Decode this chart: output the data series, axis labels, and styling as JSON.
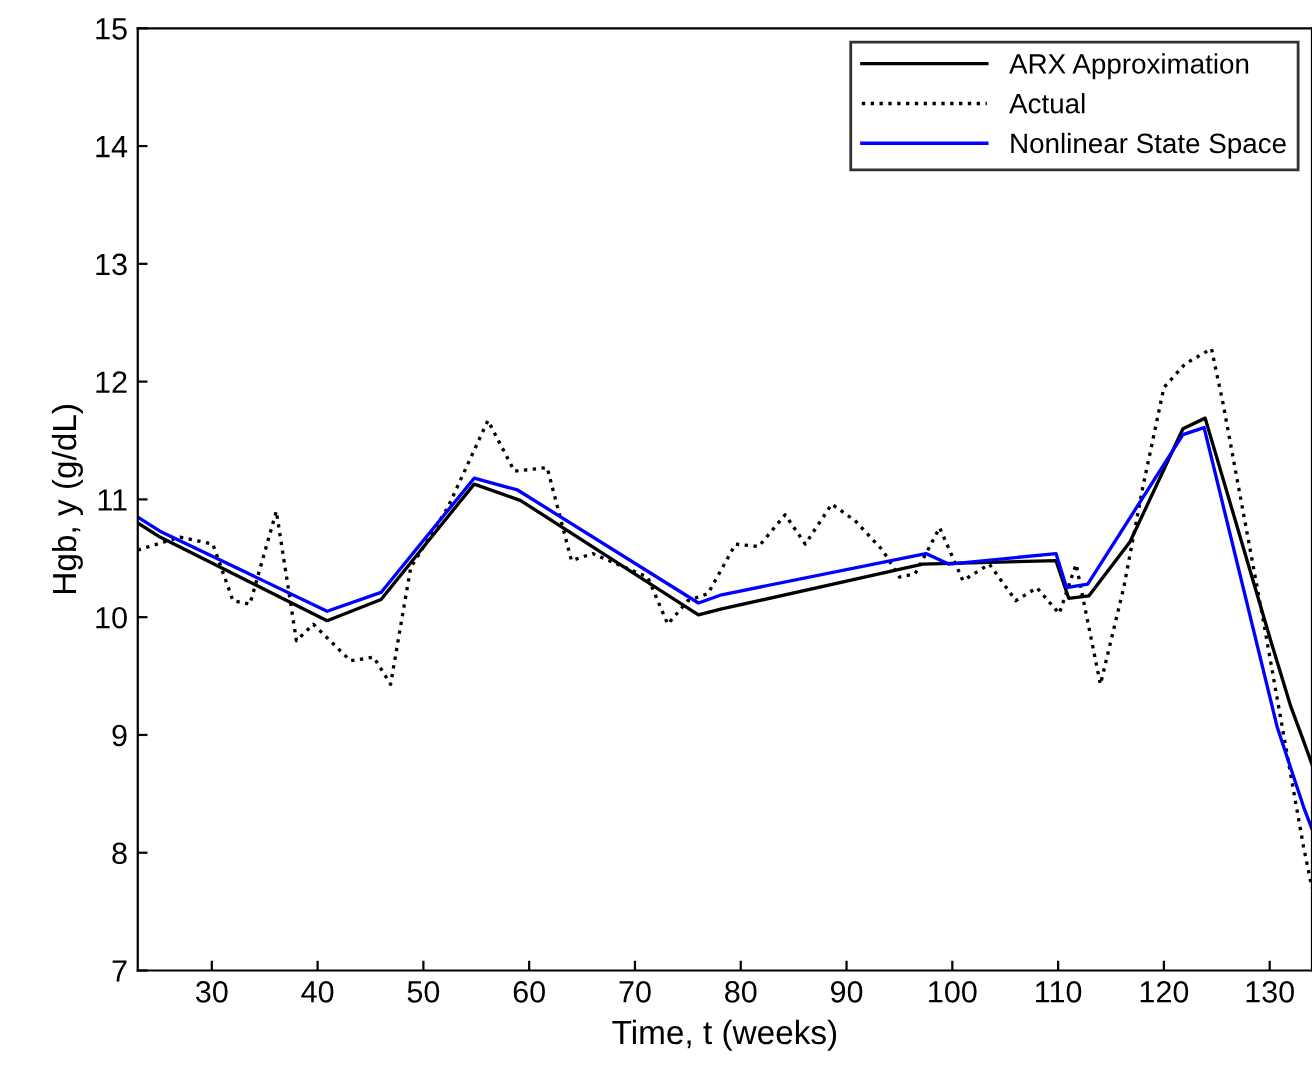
{
  "chart_data": {
    "type": "line",
    "xlabel": "Time, t (weeks)",
    "ylabel": "Hgb, y (g/dL)",
    "xlim": [
      23,
      134
    ],
    "ylim": [
      7,
      15
    ],
    "xticks": [
      30,
      40,
      50,
      60,
      70,
      80,
      90,
      100,
      110,
      120,
      130
    ],
    "yticks": [
      7,
      8,
      9,
      10,
      11,
      12,
      13,
      14,
      15
    ],
    "grid": false,
    "legend": "top right",
    "series": [
      {
        "name": "ARX Approximation",
        "color": "#000000",
        "line_style": "solid",
        "x": [
          23,
          25.1,
          40.9,
          46,
          54.8,
          59.2,
          76,
          78.2,
          97.2,
          109.8,
          111,
          112.9,
          116.8,
          121.8,
          123.9,
          130.1,
          132,
          133.2,
          134
        ],
        "values": [
          10.8,
          10.68,
          9.97,
          10.15,
          11.13,
          10.99,
          10.02,
          10.07,
          10.45,
          10.48,
          10.16,
          10.18,
          10.64,
          11.6,
          11.69,
          9.8,
          9.24,
          8.95,
          8.75
        ]
      },
      {
        "name": "Actual",
        "color": "#000000",
        "line_style": "dotted",
        "x": [
          23,
          27,
          30.1,
          32,
          33.6,
          36.1,
          38,
          39.6,
          43.1,
          45.3,
          46.9,
          48.8,
          52.3,
          56.1,
          58.6,
          61.7,
          64,
          66,
          71.2,
          73.1,
          75,
          76.9,
          79.5,
          81.7,
          84.2,
          86.1,
          88.6,
          90.8,
          93.4,
          95,
          96.5,
          98.8,
          101,
          103.5,
          106,
          108,
          110.1,
          111.7,
          114,
          116.2,
          118,
          120,
          122,
          124.5,
          125.6,
          129.4,
          133.2,
          134
        ],
        "values": [
          10.57,
          10.68,
          10.62,
          10.14,
          10.11,
          10.9,
          9.8,
          9.94,
          9.63,
          9.66,
          9.43,
          10.42,
          10.93,
          11.67,
          11.24,
          11.27,
          10.48,
          10.54,
          10.34,
          9.94,
          10.14,
          10.2,
          10.62,
          10.6,
          10.87,
          10.62,
          10.96,
          10.82,
          10.57,
          10.34,
          10.37,
          10.76,
          10.31,
          10.45,
          10.14,
          10.25,
          10.03,
          10.45,
          9.43,
          10.25,
          11.1,
          11.95,
          12.15,
          12.28,
          11.81,
          9.97,
          8.05,
          7.7
        ]
      },
      {
        "name": "Nonlinear State Space",
        "color": "#0000ff",
        "line_style": "solid",
        "x": [
          23,
          25.1,
          40.9,
          46,
          54.8,
          58.9,
          76,
          78.2,
          97.5,
          99.7,
          109.8,
          110.8,
          112.8,
          121.8,
          123.8,
          130.7,
          133.2,
          134
        ],
        "values": [
          10.85,
          10.73,
          10.05,
          10.21,
          11.18,
          11.08,
          10.12,
          10.19,
          10.54,
          10.45,
          10.54,
          10.25,
          10.28,
          11.55,
          11.61,
          9.07,
          8.39,
          8.2
        ]
      }
    ]
  }
}
